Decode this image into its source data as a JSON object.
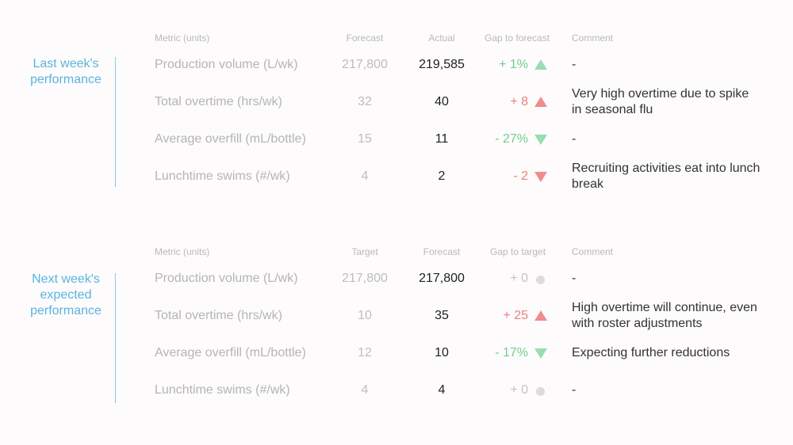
{
  "colors": {
    "accent": "#5ab4df",
    "up_green": "#97deb1",
    "down_green": "#97deb1",
    "up_red": "#f08c8c",
    "down_red": "#f08c8c",
    "neutral": "#dcdcdc"
  },
  "sections": [
    {
      "label_line1": "Last week's",
      "label_line2": "performance",
      "headers": {
        "metric": "Metric (units)",
        "col2": "Forecast",
        "col3": "Actual",
        "gap": "Gap to forecast",
        "comment": "Comment"
      },
      "rows": [
        {
          "metric": "Production volume (L/wk)",
          "col2": "217,800",
          "col3": "219,585",
          "gap": "+ 1%",
          "indicator": "up-green-icon",
          "comment": "-"
        },
        {
          "metric": "Total overtime (hrs/wk)",
          "col2": "32",
          "col3": "40",
          "gap": "+ 8",
          "indicator": "up-red-icon",
          "comment": "Very high overtime due to spike in seasonal flu"
        },
        {
          "metric": "Average overfill (mL/bottle)",
          "col2": "15",
          "col3": "11",
          "gap": "- 27%",
          "indicator": "down-green-icon",
          "comment": "-"
        },
        {
          "metric": "Lunchtime swims (#/wk)",
          "col2": "4",
          "col3": "2",
          "gap": "- 2",
          "indicator": "down-red-icon",
          "comment": "Recruiting activities eat into lunch break"
        }
      ]
    },
    {
      "label_line1": "Next week's",
      "label_line2": "expected",
      "label_line3": "performance",
      "headers": {
        "metric": "Metric (units)",
        "col2": "Target",
        "col3": "Forecast",
        "gap": "Gap to target",
        "comment": "Comment"
      },
      "rows": [
        {
          "metric": "Production volume (L/wk)",
          "col2": "217,800",
          "col3": "217,800",
          "gap": "+ 0",
          "indicator": "neutral-dot-icon",
          "comment": "-"
        },
        {
          "metric": "Total overtime (hrs/wk)",
          "col2": "10",
          "col3": "35",
          "gap": "+ 25",
          "indicator": "up-red-icon",
          "comment": "High overtime will continue, even with roster adjustments"
        },
        {
          "metric": "Average overfill (mL/bottle)",
          "col2": "12",
          "col3": "10",
          "gap": "- 17%",
          "indicator": "down-green-icon",
          "comment": "Expecting further reductions"
        },
        {
          "metric": "Lunchtime swims (#/wk)",
          "col2": "4",
          "col3": "4",
          "gap": "+ 0",
          "indicator": "neutral-dot-icon",
          "comment": "-"
        }
      ]
    }
  ]
}
